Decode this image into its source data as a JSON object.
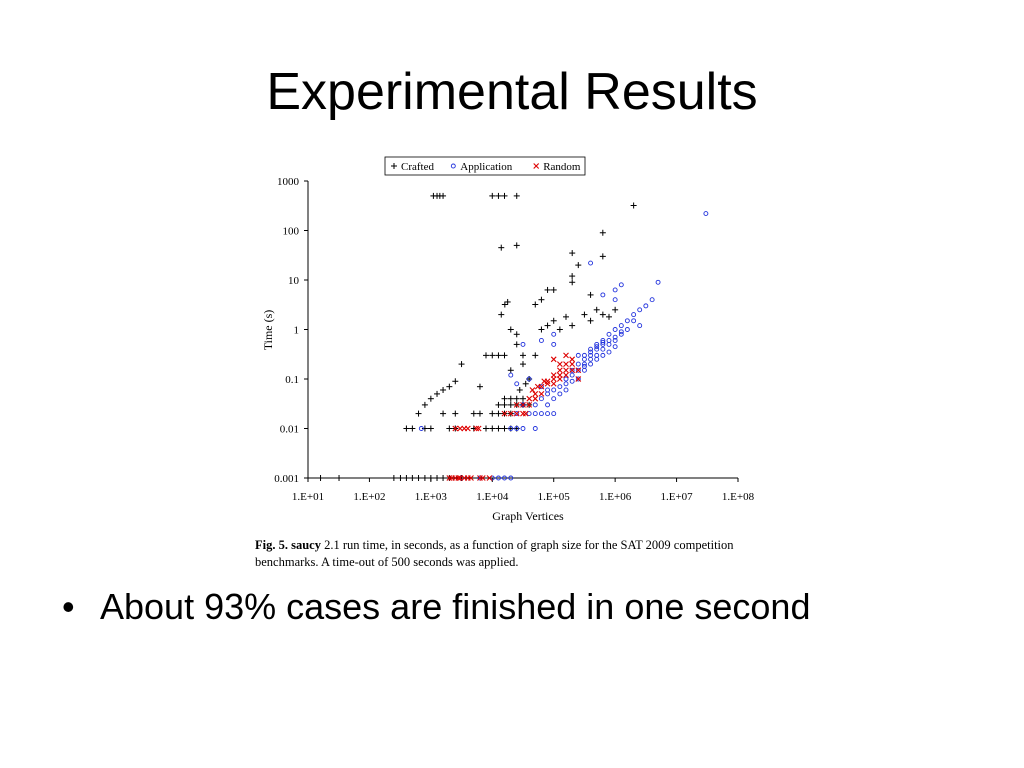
{
  "slide": {
    "title": "Experimental Results",
    "bullets": [
      "About 93% cases are finished in one second"
    ]
  },
  "caption": {
    "fig_label": "Fig. 5.",
    "tool": "saucy",
    "text": " 2.1 run time, in seconds, as a function of graph size for the SAT 2009 competition benchmarks. A time-out of 500 seconds was applied."
  },
  "colors": {
    "crafted": "#000000",
    "application": "#2233dd",
    "random": "#dd0000"
  },
  "chart_data": {
    "type": "scatter",
    "xlabel": "Graph Vertices",
    "ylabel": "Time (s)",
    "x_scale": "log",
    "y_scale": "log",
    "xlim": [
      10,
      100000000
    ],
    "ylim": [
      0.001,
      1000
    ],
    "x_ticks": [
      "1.E+01",
      "1.E+02",
      "1.E+03",
      "1.E+04",
      "1.E+05",
      "1.E+06",
      "1.E+07",
      "1.E+08"
    ],
    "y_ticks": [
      "0.001",
      "0.01",
      "0.1",
      "1",
      "10",
      "100",
      "1000"
    ],
    "legend_position": "top",
    "series": [
      {
        "name": "Crafted",
        "marker": "+",
        "points": [
          [
            16,
            0.001
          ],
          [
            32,
            0.001
          ],
          [
            250,
            0.001
          ],
          [
            320,
            0.001
          ],
          [
            400,
            0.001
          ],
          [
            500,
            0.001
          ],
          [
            630,
            0.001
          ],
          [
            800,
            0.001
          ],
          [
            1000,
            0.001
          ],
          [
            1260,
            0.001
          ],
          [
            1580,
            0.001
          ],
          [
            2000,
            0.001
          ],
          [
            3160,
            0.001
          ],
          [
            400,
            0.01
          ],
          [
            500,
            0.01
          ],
          [
            800,
            0.01
          ],
          [
            1000,
            0.01
          ],
          [
            2000,
            0.01
          ],
          [
            2500,
            0.01
          ],
          [
            5000,
            0.01
          ],
          [
            7900,
            0.01
          ],
          [
            10000,
            0.01
          ],
          [
            12600,
            0.01
          ],
          [
            15800,
            0.01
          ],
          [
            20000,
            0.01
          ],
          [
            25000,
            0.01
          ],
          [
            630,
            0.02
          ],
          [
            1580,
            0.02
          ],
          [
            2500,
            0.02
          ],
          [
            5000,
            0.02
          ],
          [
            6300,
            0.02
          ],
          [
            10000,
            0.02
          ],
          [
            12600,
            0.02
          ],
          [
            15800,
            0.02
          ],
          [
            20000,
            0.02
          ],
          [
            12600,
            0.03
          ],
          [
            15800,
            0.03
          ],
          [
            20000,
            0.03
          ],
          [
            25000,
            0.03
          ],
          [
            31600,
            0.03
          ],
          [
            39800,
            0.03
          ],
          [
            15800,
            0.04
          ],
          [
            20000,
            0.04
          ],
          [
            25000,
            0.04
          ],
          [
            31600,
            0.04
          ],
          [
            800,
            0.03
          ],
          [
            1000,
            0.04
          ],
          [
            1260,
            0.05
          ],
          [
            1580,
            0.06
          ],
          [
            2000,
            0.07
          ],
          [
            2500,
            0.09
          ],
          [
            3160,
            0.2
          ],
          [
            6300,
            0.07
          ],
          [
            10000,
            0.3
          ],
          [
            15800,
            0.3
          ],
          [
            20000,
            0.15
          ],
          [
            25000,
            0.5
          ],
          [
            31600,
            0.2
          ],
          [
            39800,
            0.1
          ],
          [
            50100,
            0.3
          ],
          [
            7900,
            0.3
          ],
          [
            12600,
            0.3
          ],
          [
            28000,
            0.06
          ],
          [
            35000,
            0.08
          ],
          [
            20000,
            1.0
          ],
          [
            25000,
            0.8
          ],
          [
            31600,
            0.3
          ],
          [
            63100,
            1.0
          ],
          [
            79400,
            1.2
          ],
          [
            100000,
            1.5
          ],
          [
            125900,
            1.0
          ],
          [
            158500,
            1.8
          ],
          [
            199500,
            1.2
          ],
          [
            316200,
            2.0
          ],
          [
            398100,
            1.5
          ],
          [
            501200,
            2.5
          ],
          [
            631000,
            2.0
          ],
          [
            794300,
            1.8
          ],
          [
            1000000,
            2.5
          ],
          [
            14000,
            2.0
          ],
          [
            16000,
            3.2
          ],
          [
            17800,
            3.6
          ],
          [
            50100,
            3.2
          ],
          [
            63100,
            4.0
          ],
          [
            79400,
            6.3
          ],
          [
            100000,
            6.3
          ],
          [
            398100,
            5.0
          ],
          [
            199500,
            12
          ],
          [
            251200,
            20
          ],
          [
            14000,
            45
          ],
          [
            25000,
            50
          ],
          [
            200000,
            35
          ],
          [
            630000,
            30
          ],
          [
            630000,
            90
          ],
          [
            2000000,
            320
          ],
          [
            200000,
            9
          ],
          [
            1100,
            500
          ],
          [
            1260,
            500
          ],
          [
            1400,
            500
          ],
          [
            1580,
            500
          ],
          [
            10000,
            500
          ],
          [
            12600,
            500
          ],
          [
            15800,
            500
          ],
          [
            25000,
            500
          ]
        ]
      },
      {
        "name": "Application",
        "marker": "o",
        "points": [
          [
            3160,
            0.001
          ],
          [
            6300,
            0.001
          ],
          [
            10000,
            0.001
          ],
          [
            12600,
            0.001
          ],
          [
            15800,
            0.001
          ],
          [
            20000,
            0.001
          ],
          [
            700,
            0.01
          ],
          [
            20000,
            0.01
          ],
          [
            25000,
            0.01
          ],
          [
            31600,
            0.01
          ],
          [
            50100,
            0.01
          ],
          [
            25000,
            0.02
          ],
          [
            39800,
            0.02
          ],
          [
            50100,
            0.02
          ],
          [
            63100,
            0.02
          ],
          [
            79400,
            0.02
          ],
          [
            100000,
            0.02
          ],
          [
            31600,
            0.03
          ],
          [
            50100,
            0.03
          ],
          [
            63100,
            0.04
          ],
          [
            79400,
            0.05
          ],
          [
            100000,
            0.06
          ],
          [
            125900,
            0.07
          ],
          [
            158500,
            0.08
          ],
          [
            79400,
            0.03
          ],
          [
            100000,
            0.04
          ],
          [
            125900,
            0.05
          ],
          [
            158500,
            0.06
          ],
          [
            199500,
            0.09
          ],
          [
            251200,
            0.1
          ],
          [
            316200,
            0.15
          ],
          [
            251200,
            0.3
          ],
          [
            316200,
            0.2
          ],
          [
            398100,
            0.25
          ],
          [
            501200,
            0.3
          ],
          [
            631000,
            0.4
          ],
          [
            794300,
            0.5
          ],
          [
            1000000,
            0.6
          ],
          [
            1260000,
            0.8
          ],
          [
            1580000,
            1.0
          ],
          [
            2000000,
            1.5
          ],
          [
            2510000,
            1.2
          ],
          [
            398100,
            0.4
          ],
          [
            501200,
            0.5
          ],
          [
            631000,
            0.6
          ],
          [
            794300,
            0.8
          ],
          [
            1000000,
            1.0
          ],
          [
            1260000,
            1.2
          ],
          [
            1580000,
            1.5
          ],
          [
            2000000,
            2.0
          ],
          [
            316200,
            0.3
          ],
          [
            398100,
            0.3
          ],
          [
            501200,
            0.4
          ],
          [
            631000,
            0.5
          ],
          [
            794300,
            0.6
          ],
          [
            1000000,
            0.7
          ],
          [
            1260000,
            0.9
          ],
          [
            199500,
            0.12
          ],
          [
            251200,
            0.15
          ],
          [
            316200,
            0.18
          ],
          [
            398100,
            0.2
          ],
          [
            501200,
            0.25
          ],
          [
            631000,
            0.3
          ],
          [
            794300,
            0.35
          ],
          [
            1000000,
            0.45
          ],
          [
            158500,
            0.1
          ],
          [
            199500,
            0.15
          ],
          [
            251200,
            0.2
          ],
          [
            316200,
            0.25
          ],
          [
            398100,
            0.35
          ],
          [
            501200,
            0.45
          ],
          [
            631000,
            0.55
          ],
          [
            20000,
            0.12
          ],
          [
            25000,
            0.08
          ],
          [
            39800,
            0.1
          ],
          [
            63100,
            0.07
          ],
          [
            79400,
            0.06
          ],
          [
            100000,
            0.5
          ],
          [
            31600,
            0.5
          ],
          [
            63100,
            0.6
          ],
          [
            100000,
            0.8
          ],
          [
            1000000,
            4
          ],
          [
            1000000,
            6.3
          ],
          [
            1260000,
            8
          ],
          [
            631000,
            5
          ],
          [
            398100,
            22
          ],
          [
            4000000,
            4
          ],
          [
            5000000,
            9
          ],
          [
            30000000,
            220
          ],
          [
            2510000,
            2.5
          ],
          [
            3160000,
            3
          ]
        ]
      },
      {
        "name": "Random",
        "marker": "x",
        "points": [
          [
            2000,
            0.001
          ],
          [
            2200,
            0.001
          ],
          [
            2500,
            0.001
          ],
          [
            2800,
            0.001
          ],
          [
            3000,
            0.001
          ],
          [
            3500,
            0.001
          ],
          [
            4000,
            0.001
          ],
          [
            4500,
            0.001
          ],
          [
            6300,
            0.001
          ],
          [
            7000,
            0.001
          ],
          [
            9000,
            0.001
          ],
          [
            2500,
            0.01
          ],
          [
            3000,
            0.01
          ],
          [
            3500,
            0.01
          ],
          [
            4000,
            0.01
          ],
          [
            5500,
            0.01
          ],
          [
            6000,
            0.01
          ],
          [
            15800,
            0.02
          ],
          [
            20000,
            0.02
          ],
          [
            25000,
            0.02
          ],
          [
            31600,
            0.02
          ],
          [
            35000,
            0.02
          ],
          [
            25000,
            0.03
          ],
          [
            31600,
            0.03
          ],
          [
            39800,
            0.03
          ],
          [
            50100,
            0.04
          ],
          [
            50100,
            0.05
          ],
          [
            63100,
            0.05
          ],
          [
            79400,
            0.08
          ],
          [
            100000,
            0.1
          ],
          [
            125900,
            0.12
          ],
          [
            158500,
            0.15
          ],
          [
            199500,
            0.2
          ],
          [
            251200,
            0.15
          ],
          [
            63100,
            0.07
          ],
          [
            79400,
            0.09
          ],
          [
            100000,
            0.12
          ],
          [
            125900,
            0.15
          ],
          [
            158500,
            0.2
          ],
          [
            199500,
            0.25
          ],
          [
            251200,
            0.1
          ],
          [
            100000,
            0.08
          ],
          [
            125900,
            0.1
          ],
          [
            158500,
            0.12
          ],
          [
            199500,
            0.15
          ],
          [
            125900,
            0.2
          ],
          [
            158500,
            0.3
          ],
          [
            100000,
            0.25
          ],
          [
            40000,
            0.04
          ],
          [
            45000,
            0.06
          ],
          [
            55000,
            0.07
          ],
          [
            70000,
            0.09
          ]
        ]
      }
    ]
  }
}
